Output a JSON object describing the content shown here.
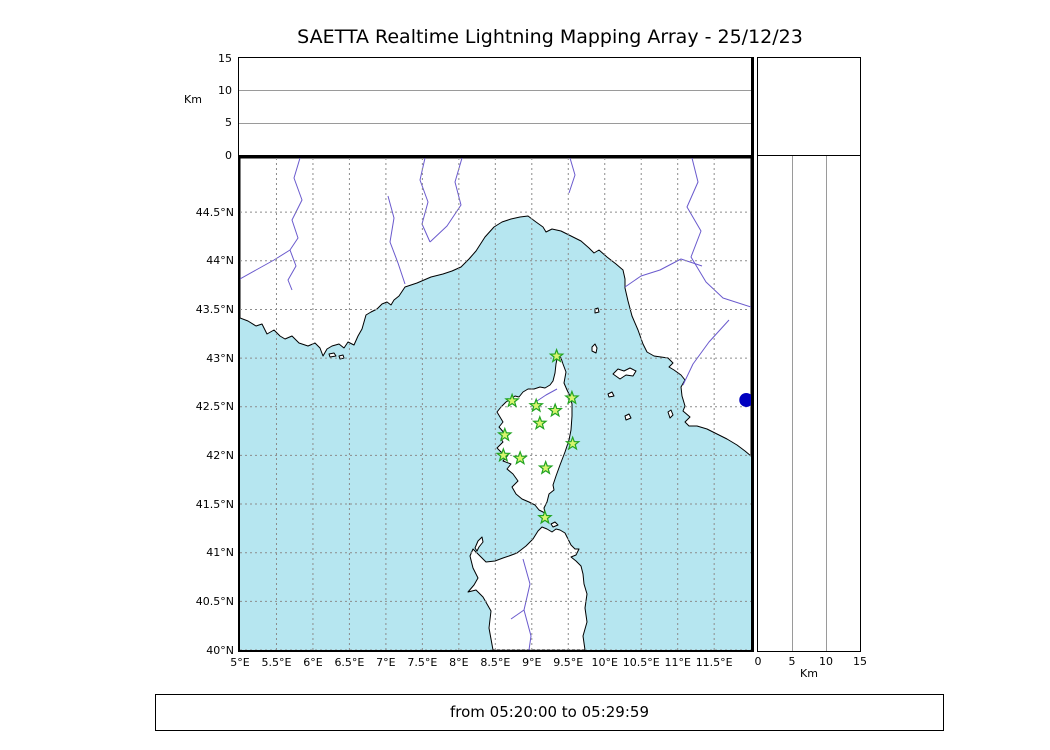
{
  "title": "SAETTA Realtime Lightning Mapping Array - 25/12/23",
  "footer": {
    "time_range": "from 05:20:00 to 05:29:59"
  },
  "colors": {
    "sea": "#b6e6f0",
    "land": "#ffffff",
    "coastline": "#000000",
    "river": "#6a5acd",
    "grid": "#8c8c8c",
    "panel_grid": "#9a9a9a",
    "station_fill": "#d8f56e",
    "station_edge": "#22a422",
    "event_dot": "#0000c0"
  },
  "axes": {
    "map": {
      "lon_ticks": [
        {
          "value": 5,
          "label": "5°E"
        },
        {
          "value": 5.5,
          "label": "5.5°E"
        },
        {
          "value": 6,
          "label": "6°E"
        },
        {
          "value": 6.5,
          "label": "6.5°E"
        },
        {
          "value": 7,
          "label": "7°E"
        },
        {
          "value": 7.5,
          "label": "7.5°E"
        },
        {
          "value": 8,
          "label": "8°E"
        },
        {
          "value": 8.5,
          "label": "8.5°E"
        },
        {
          "value": 9,
          "label": "9°E"
        },
        {
          "value": 9.5,
          "label": "9.5°E"
        },
        {
          "value": 10,
          "label": "10°E"
        },
        {
          "value": 10.5,
          "label": "10.5°E"
        },
        {
          "value": 11,
          "label": "11°E"
        },
        {
          "value": 11.5,
          "label": "11.5°E"
        }
      ],
      "lat_ticks": [
        {
          "value": 44.5,
          "label": "44.5°N"
        },
        {
          "value": 44,
          "label": "44°N"
        },
        {
          "value": 43.5,
          "label": "43.5°N"
        },
        {
          "value": 43,
          "label": "43°N"
        },
        {
          "value": 42.5,
          "label": "42.5°N"
        },
        {
          "value": 42,
          "label": "42°N"
        },
        {
          "value": 41.5,
          "label": "41.5°N"
        },
        {
          "value": 41,
          "label": "41°N"
        },
        {
          "value": 40.5,
          "label": "40.5°N"
        },
        {
          "value": 40,
          "label": "40°N"
        }
      ]
    },
    "altitude_top": {
      "unit": "Km",
      "ticks": [
        {
          "value": 0,
          "label": "0"
        },
        {
          "value": 5,
          "label": "5"
        },
        {
          "value": 10,
          "label": "10"
        },
        {
          "value": 15,
          "label": "15"
        }
      ]
    },
    "altitude_right": {
      "unit": "Km",
      "ticks": [
        {
          "value": 0,
          "label": "0"
        },
        {
          "value": 5,
          "label": "5"
        },
        {
          "value": 10,
          "label": "10"
        },
        {
          "value": 15,
          "label": "15"
        }
      ]
    }
  },
  "chart_data": {
    "type": "scatter",
    "title": "SAETTA Realtime Lightning Mapping Array - 25/12/23",
    "time_window": {
      "start": "05:20:00",
      "end": "05:29:59"
    },
    "map_panel": {
      "lon_range": [
        5.0,
        12.0
      ],
      "lat_range": [
        40.0,
        45.06
      ],
      "grid": true
    },
    "altitude_panels": {
      "unit": "Km",
      "range": [
        0,
        15
      ],
      "gridlines_km": [
        5,
        10
      ]
    },
    "series": [
      {
        "name": "lma-stations",
        "marker": "green-star",
        "points_lon_lat": [
          [
            9.34,
            43.02
          ],
          [
            9.55,
            42.59
          ],
          [
            8.73,
            42.56
          ],
          [
            9.06,
            42.51
          ],
          [
            9.32,
            42.46
          ],
          [
            9.11,
            42.33
          ],
          [
            8.63,
            42.21
          ],
          [
            9.56,
            42.12
          ],
          [
            8.61,
            42.0
          ],
          [
            8.84,
            41.97
          ],
          [
            9.19,
            41.87
          ],
          [
            9.18,
            41.36
          ]
        ]
      },
      {
        "name": "event-marker",
        "marker": "blue-circle",
        "points_lon_lat": [
          [
            11.94,
            42.57
          ]
        ]
      }
    ],
    "lightning_sources": []
  }
}
